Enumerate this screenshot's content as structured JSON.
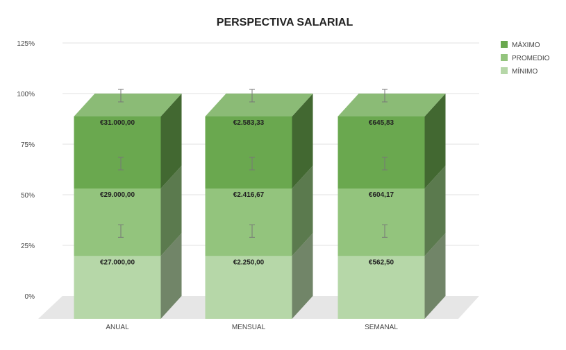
{
  "colors": {
    "maximo": "#6aa84f",
    "promedio": "#93c47d",
    "minimo": "#b6d7a8",
    "grid": "#e0e0e0",
    "floor": "#e6e6e6",
    "errorbar": "#777777",
    "text": "#222222",
    "axis_text": "#444444"
  },
  "chart_data": {
    "type": "bar",
    "stacked": true,
    "normalized": true,
    "three_d": true,
    "title": "PERSPECTIVA SALARIAL",
    "categories": [
      "ANUAL",
      "MENSUAL",
      "SEMANAL"
    ],
    "series": [
      {
        "name": "MÍNIMO",
        "values": [
          27000.0,
          2250.0,
          562.5
        ],
        "labels": [
          "€27.000,00",
          "€2.250,00",
          "€562,50"
        ]
      },
      {
        "name": "PROMEDIO",
        "values": [
          29000.0,
          2416.67,
          604.17
        ],
        "labels": [
          "€29.000,00",
          "€2.416,67",
          "€604,17"
        ]
      },
      {
        "name": "MÁXIMO",
        "values": [
          31000.0,
          2583.33,
          645.83
        ],
        "labels": [
          "€31.000,00",
          "€2.583,33",
          "€645,83"
        ]
      }
    ],
    "y_ticks": [
      "0%",
      "25%",
      "50%",
      "75%",
      "100%",
      "125%"
    ],
    "ylim": [
      0,
      125
    ],
    "grid": true,
    "legend_position": "top-right",
    "error_bars": true
  }
}
